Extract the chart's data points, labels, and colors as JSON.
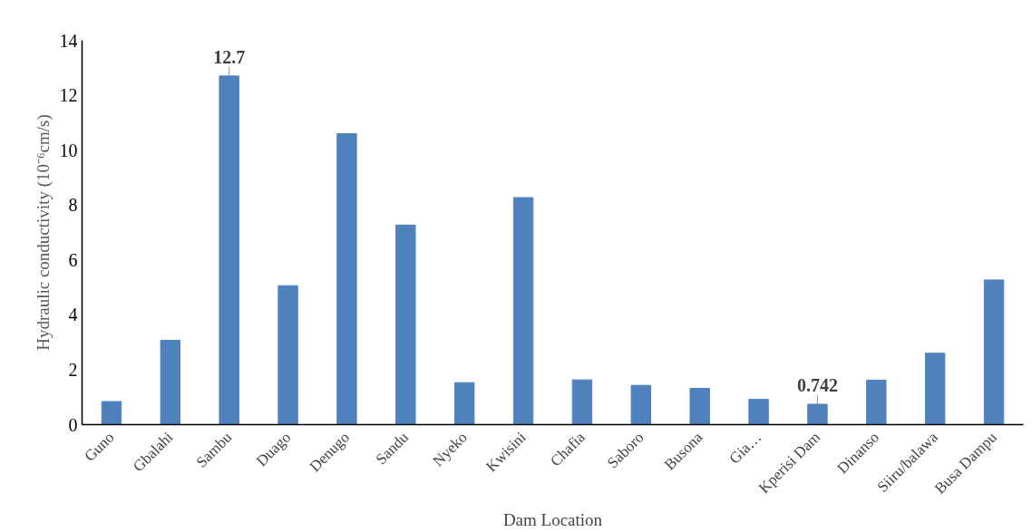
{
  "chart_data": {
    "type": "bar",
    "xlabel": "Dam Location",
    "ylabel": "Hydraulic conductivity (10⁻⁶cm/s)",
    "categories": [
      "Guno",
      "Gbalahi",
      "Sambu",
      "Duago",
      "Denugo",
      "Sandu",
      "Nyeko",
      "Kwisini",
      "Chafia",
      "Saboro",
      "Busona",
      "Gia…",
      "Kperisi Dam",
      "Dinanso",
      "Siiru/balawa",
      "Busa Dampu"
    ],
    "values": [
      0.84,
      3.07,
      12.7,
      5.06,
      10.6,
      7.27,
      1.53,
      8.27,
      1.63,
      1.43,
      1.32,
      0.92,
      0.742,
      1.62,
      2.6,
      5.27
    ],
    "value_labels": [
      null,
      null,
      "12.7",
      null,
      null,
      null,
      null,
      null,
      null,
      null,
      null,
      null,
      "0.742",
      null,
      null,
      null
    ],
    "color": "#4f81bd",
    "ylim": [
      0,
      14
    ],
    "yticks": [
      0,
      2,
      4,
      6,
      8,
      10,
      12,
      14
    ],
    "grid": false
  }
}
